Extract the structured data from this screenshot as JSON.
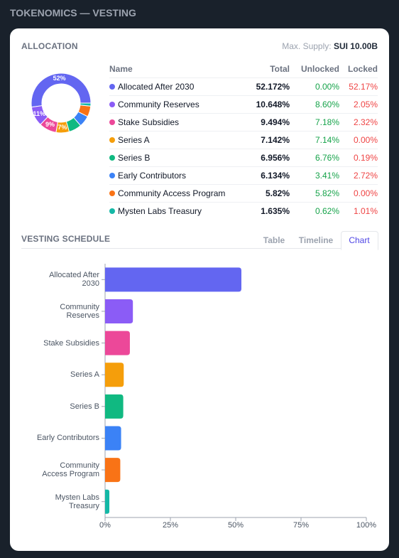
{
  "header": {
    "title": "TOKENOMICS — VESTING"
  },
  "allocation": {
    "title": "ALLOCATION",
    "max_supply_label": "Max. Supply:",
    "max_supply_value": "SUI 10.00B",
    "table": {
      "columns": [
        "Name",
        "Total",
        "Unlocked",
        "Locked"
      ],
      "rows": [
        [
          "Allocated After 2030",
          "52.172%",
          "0.00%",
          "52.17%"
        ],
        [
          "Community Reserves",
          "10.648%",
          "8.60%",
          "2.05%"
        ],
        [
          "Stake Subsidies",
          "9.494%",
          "7.18%",
          "2.32%"
        ],
        [
          "Series A",
          "7.142%",
          "7.14%",
          "0.00%"
        ],
        [
          "Series B",
          "6.956%",
          "6.76%",
          "0.19%"
        ],
        [
          "Early Contributors",
          "6.134%",
          "3.41%",
          "2.72%"
        ],
        [
          "Community Access Program",
          "5.82%",
          "5.82%",
          "0.00%"
        ],
        [
          "Mysten Labs Treasury",
          "1.635%",
          "0.62%",
          "1.01%"
        ]
      ]
    }
  },
  "vesting": {
    "title": "VESTING SCHEDULE",
    "tabs": [
      "Table",
      "Timeline",
      "Chart"
    ],
    "active_tab": 2
  },
  "chart_data": [
    {
      "type": "pie",
      "donut": true,
      "values": [
        52.172,
        10.648,
        9.494,
        7.142,
        6.956,
        6.134,
        5.82,
        1.635
      ],
      "value_labels": [
        "52%",
        "11%",
        "9%",
        "7%",
        null,
        null,
        null,
        null
      ],
      "colors": [
        "#6366f1",
        "#8b5cf6",
        "#ec4899",
        "#f59e0b",
        "#10b981",
        "#3b82f6",
        "#f97316",
        "#14b8a6"
      ]
    },
    {
      "type": "bar",
      "orientation": "horizontal",
      "categories": [
        "Allocated After 2030",
        "Community Reserves",
        "Stake Subsidies",
        "Series A",
        "Series B",
        "Early Contributors",
        "Community Access Program",
        "Mysten Labs Treasury"
      ],
      "values": [
        52.172,
        10.648,
        9.494,
        7.142,
        6.956,
        6.134,
        5.82,
        1.635
      ],
      "colors": [
        "#6366f1",
        "#8b5cf6",
        "#ec4899",
        "#f59e0b",
        "#10b981",
        "#3b82f6",
        "#f97316",
        "#14b8a6"
      ],
      "xlim": [
        0,
        100
      ],
      "xticks": [
        {
          "value": 0,
          "label": "0%"
        },
        {
          "value": 25,
          "label": "25%"
        },
        {
          "value": 50,
          "label": "50%"
        },
        {
          "value": 75,
          "label": "75%"
        },
        {
          "value": 100,
          "label": "100%"
        }
      ],
      "grid": false
    }
  ]
}
